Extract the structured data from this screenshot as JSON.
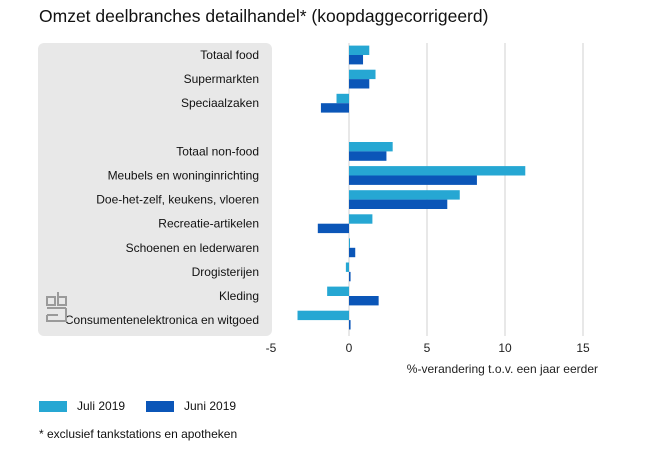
{
  "title": "Omzet deelbranches detailhandel* (koopdaggecorrigeerd)",
  "footnote": "* exclusief tankstations en apotheken",
  "colors": {
    "juli": "#26a7d3",
    "juni": "#0b56b8",
    "panel": "#e8e8e8",
    "grid": "#d0d0d0",
    "logo": "#9a9a9a"
  },
  "chart_data": {
    "type": "bar",
    "orientation": "horizontal",
    "title": "Omzet deelbranches detailhandel* (koopdaggecorrigeerd)",
    "xlabel": "%-verandering t.o.v. een jaar eerder",
    "ylabel": "",
    "xlim": [
      -5,
      15
    ],
    "xticks": [
      -5,
      0,
      5,
      10,
      15
    ],
    "grid": true,
    "legend_position": "bottom-left",
    "categories": [
      "Totaal food",
      "Supermarkten",
      "Speciaalzaken",
      "",
      "Totaal non-food",
      "Meubels en woninginrichting",
      "Doe-het-zelf, keukens, vloeren",
      "Recreatie-artikelen",
      "Schoenen en lederwaren",
      "Drogisterijen",
      "Kleding",
      "Consumentenelektronica en witgoed"
    ],
    "series": [
      {
        "name": "Juli 2019",
        "color": "#26a7d3",
        "values": [
          1.3,
          1.7,
          -0.8,
          null,
          2.8,
          11.3,
          7.1,
          1.5,
          0.0,
          -0.2,
          -1.4,
          -3.3
        ]
      },
      {
        "name": "Juni 2019",
        "color": "#0b56b8",
        "values": [
          0.9,
          1.3,
          -1.8,
          null,
          2.4,
          8.2,
          6.3,
          -2.0,
          0.4,
          0.1,
          1.9,
          0.1
        ]
      }
    ]
  }
}
